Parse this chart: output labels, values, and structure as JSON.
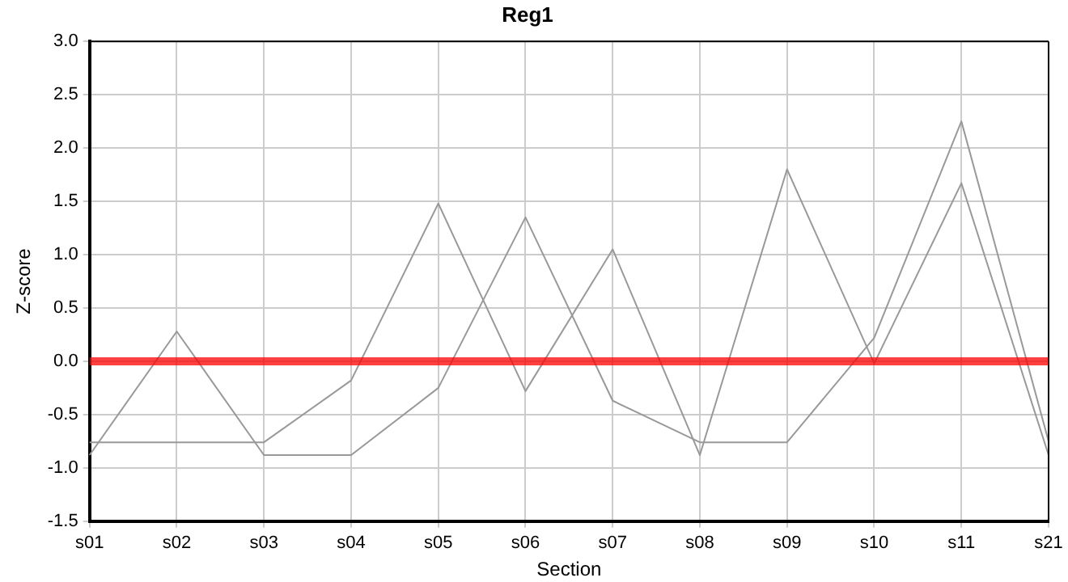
{
  "chart_data": {
    "type": "line",
    "title": "Reg1",
    "xlabel": "Section",
    "ylabel": "Z-score",
    "categories": [
      "s01",
      "s02",
      "s03",
      "s04",
      "s05",
      "s06",
      "s07",
      "s08",
      "s09",
      "s10",
      "s11",
      "s21"
    ],
    "series": [
      {
        "color": "#999999",
        "values": [
          -0.88,
          0.28,
          -0.88,
          -0.88,
          -0.25,
          1.35,
          -0.37,
          -0.76,
          -0.76,
          0.22,
          2.25,
          -0.75
        ]
      },
      {
        "color": "#999999",
        "values": [
          -0.76,
          -0.76,
          -0.76,
          -0.18,
          1.48,
          -0.28,
          1.05,
          -0.88,
          1.8,
          -0.02,
          1.67,
          -0.88
        ]
      }
    ],
    "ylim": [
      -1.5,
      3
    ],
    "yticks": [
      {
        "value": -1.5,
        "label": "-1.5"
      },
      {
        "value": -1,
        "label": "-1.0"
      },
      {
        "value": -0.5,
        "label": "-0.5"
      },
      {
        "value": 0,
        "label": "0.0"
      },
      {
        "value": 0.5,
        "label": "0.5"
      },
      {
        "value": 1,
        "label": "1.0"
      },
      {
        "value": 1.5,
        "label": "1.5"
      },
      {
        "value": 2,
        "label": "2.0"
      },
      {
        "value": 2.5,
        "label": "2.5"
      },
      {
        "value": 3,
        "label": "3.0"
      }
    ],
    "ref_lines": [
      {
        "axis": "y",
        "value": 0,
        "color": "#ff0000"
      }
    ],
    "grid": true,
    "legend": false,
    "marker": "none",
    "line_style": "solid"
  }
}
